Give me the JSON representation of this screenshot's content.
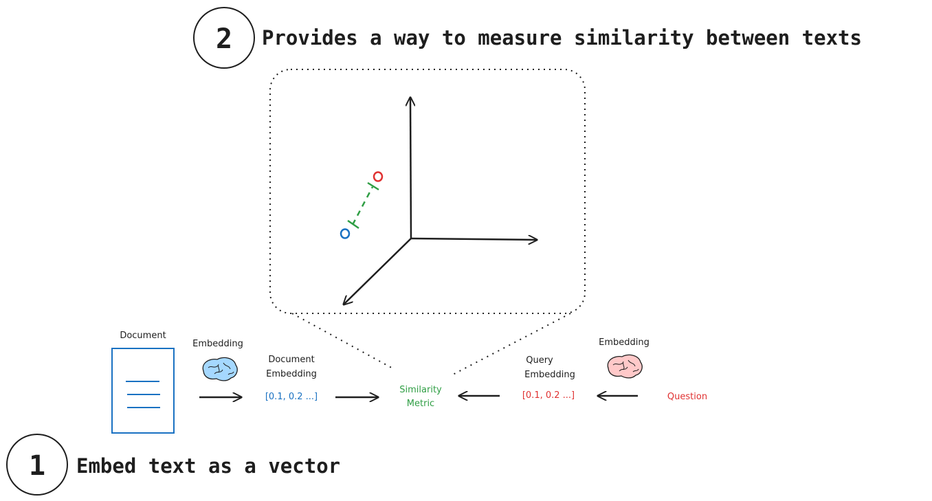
{
  "steps": [
    {
      "number": "1",
      "text": "Embed text as a vector"
    },
    {
      "number": "2",
      "text": "Provides a way to measure similarity between texts"
    }
  ],
  "flow": {
    "document_label": "Document",
    "doc_embedding_model_label": "Embedding",
    "doc_embedding_label_line1": "Document",
    "doc_embedding_label_line2": "Embedding",
    "doc_vector": "[0.1, 0.2 ...]",
    "similarity_line1": "Similarity",
    "similarity_line2": "Metric",
    "query_embedding_label_line1": "Query",
    "query_embedding_label_line2": "Embedding",
    "query_vector": "[0.1, 0.2 ...]",
    "query_embedding_model_label": "Embedding",
    "question_label": "Question"
  },
  "colors": {
    "document": "#1971c2",
    "query": "#e03131",
    "similarity": "#2f9e44",
    "ink": "#1e1e1e",
    "brain_blue": "#a5d8ff",
    "brain_pink": "#ffc9c9"
  },
  "icons": [
    "brain-icon-blue",
    "brain-icon-pink",
    "document-icon"
  ]
}
